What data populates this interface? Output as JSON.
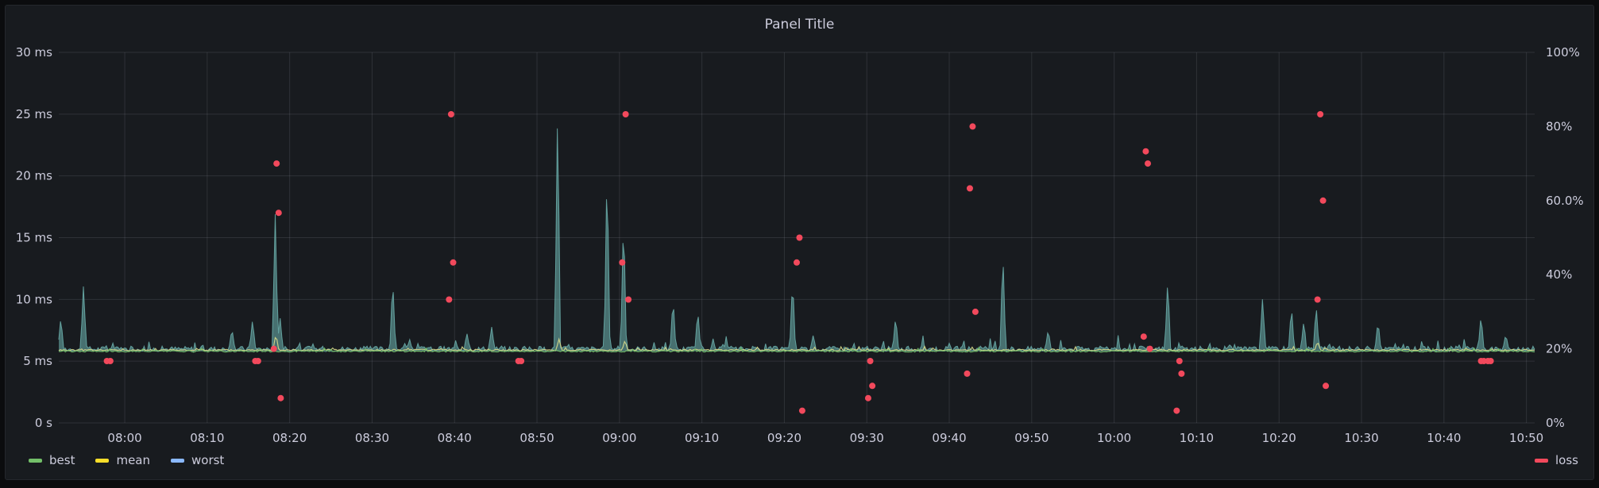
{
  "panel": {
    "title": "Panel Title"
  },
  "legend": [
    {
      "name": "best",
      "color": "#73bf69"
    },
    {
      "name": "mean",
      "color": "#fade2a"
    },
    {
      "name": "worst",
      "color": "#8ab8ff"
    }
  ],
  "legend_right": [
    {
      "name": "loss",
      "color": "#f2495c"
    }
  ],
  "chart_data": {
    "type": "line",
    "title": "Panel Title",
    "xlabel": "",
    "ylabel": "",
    "x_ticks": [
      "08:00",
      "08:10",
      "08:20",
      "08:30",
      "08:40",
      "08:50",
      "09:00",
      "09:10",
      "09:20",
      "09:30",
      "09:40",
      "09:50",
      "10:00",
      "10:10",
      "10:20",
      "10:30",
      "10:40",
      "10:50"
    ],
    "x_range": [
      "07:52",
      "10:51"
    ],
    "y_left": {
      "unit": "ms",
      "ticks": [
        "0 s",
        "5 ms",
        "10 ms",
        "15 ms",
        "20 ms",
        "25 ms",
        "30 ms"
      ],
      "ylim": [
        0,
        30
      ]
    },
    "y_right": {
      "unit": "%",
      "ticks": [
        "0%",
        "20%",
        "40%",
        "60.0%",
        "80%",
        "100%"
      ],
      "ylim": [
        0,
        100
      ]
    },
    "grid": true,
    "legend_position": "bottom",
    "series": [
      {
        "name": "worst",
        "color": "#6fb7b3",
        "fill": true,
        "baseline": 6,
        "spikes": [
          [
            "07:52:15",
            8.6
          ],
          [
            "07:55:00",
            11.3
          ],
          [
            "08:13:00",
            7.7
          ],
          [
            "08:15:30",
            8.4
          ],
          [
            "08:18:15",
            17.0
          ],
          [
            "08:18:50",
            8.6
          ],
          [
            "08:32:30",
            11.8
          ],
          [
            "08:41:30",
            7.3
          ],
          [
            "08:44:30",
            7.8
          ],
          [
            "08:52:30",
            26.0
          ],
          [
            "08:58:30",
            21.2
          ],
          [
            "09:00:30",
            17.2
          ],
          [
            "09:06:30",
            10.2
          ],
          [
            "09:09:30",
            9.2
          ],
          [
            "09:21:00",
            11.8
          ],
          [
            "09:23:30",
            7.1
          ],
          [
            "09:33:30",
            8.7
          ],
          [
            "09:46:30",
            14.0
          ],
          [
            "09:52:00",
            7.6
          ],
          [
            "10:06:30",
            11.8
          ],
          [
            "10:18:00",
            10.2
          ],
          [
            "10:21:30",
            9.5
          ],
          [
            "10:23:00",
            8.3
          ],
          [
            "10:24:30",
            9.6
          ],
          [
            "10:32:00",
            8.3
          ],
          [
            "10:44:30",
            8.8
          ],
          [
            "10:47:30",
            7.2
          ]
        ]
      },
      {
        "name": "mean",
        "color": "#d6d88a",
        "fill": false,
        "baseline": 5.9,
        "spikes": [
          [
            "08:18:20",
            7.2
          ],
          [
            "08:52:40",
            6.8
          ],
          [
            "09:00:40",
            6.7
          ],
          [
            "10:24:40",
            6.6
          ]
        ]
      },
      {
        "name": "best",
        "color": "#73bf69",
        "fill": false,
        "baseline": 5.8,
        "spikes": []
      }
    ],
    "scatter": {
      "name": "loss",
      "axis": "right",
      "color": "#f2495c",
      "points": [
        [
          "07:57:50",
          16.7
        ],
        [
          "07:58:15",
          16.7
        ],
        [
          "08:15:50",
          16.7
        ],
        [
          "08:16:10",
          16.7
        ],
        [
          "08:18:05",
          20
        ],
        [
          "08:18:25",
          70
        ],
        [
          "08:18:40",
          56.7
        ],
        [
          "08:18:55",
          6.7
        ],
        [
          "08:39:20",
          33.3
        ],
        [
          "08:39:35",
          83.3
        ],
        [
          "08:39:50",
          43.3
        ],
        [
          "08:47:45",
          16.7
        ],
        [
          "08:48:05",
          16.7
        ],
        [
          "09:00:20",
          43.3
        ],
        [
          "09:00:45",
          83.3
        ],
        [
          "09:01:05",
          33.3
        ],
        [
          "09:21:30",
          43.3
        ],
        [
          "09:21:50",
          50
        ],
        [
          "09:22:10",
          3.3
        ],
        [
          "09:30:10",
          6.7
        ],
        [
          "09:30:25",
          16.7
        ],
        [
          "09:30:40",
          10
        ],
        [
          "09:42:10",
          13.3
        ],
        [
          "09:42:30",
          63.3
        ],
        [
          "09:42:50",
          80
        ],
        [
          "09:43:10",
          30
        ],
        [
          "10:03:35",
          23.3
        ],
        [
          "10:03:50",
          73.3
        ],
        [
          "10:04:05",
          70
        ],
        [
          "10:04:20",
          20
        ],
        [
          "10:07:35",
          3.3
        ],
        [
          "10:07:55",
          16.7
        ],
        [
          "10:08:10",
          13.3
        ],
        [
          "10:24:40",
          33.3
        ],
        [
          "10:25:00",
          83.3
        ],
        [
          "10:25:20",
          60
        ],
        [
          "10:25:40",
          10
        ],
        [
          "10:44:30",
          16.7
        ],
        [
          "10:44:50",
          16.7
        ],
        [
          "10:45:20",
          16.7
        ],
        [
          "10:45:40",
          16.7
        ]
      ]
    }
  }
}
